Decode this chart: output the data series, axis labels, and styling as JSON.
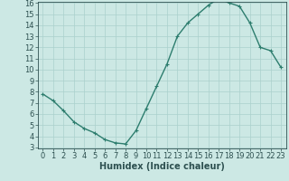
{
  "title": "",
  "xlabel": "Humidex (Indice chaleur)",
  "x": [
    0,
    1,
    2,
    3,
    4,
    5,
    6,
    7,
    8,
    9,
    10,
    11,
    12,
    13,
    14,
    15,
    16,
    17,
    18,
    19,
    20,
    21,
    22,
    23
  ],
  "y": [
    7.8,
    7.2,
    6.3,
    5.3,
    4.7,
    4.3,
    3.7,
    3.4,
    3.3,
    4.5,
    6.5,
    8.5,
    10.5,
    13.0,
    14.2,
    15.0,
    15.8,
    16.4,
    16.0,
    15.7,
    14.2,
    12.0,
    11.7,
    10.2
  ],
  "ylim_min": 3,
  "ylim_max": 16,
  "xlim_min": -0.5,
  "xlim_max": 23.5,
  "yticks": [
    3,
    4,
    5,
    6,
    7,
    8,
    9,
    10,
    11,
    12,
    13,
    14,
    15,
    16
  ],
  "xticks": [
    0,
    1,
    2,
    3,
    4,
    5,
    6,
    7,
    8,
    9,
    10,
    11,
    12,
    13,
    14,
    15,
    16,
    17,
    18,
    19,
    20,
    21,
    22,
    23
  ],
  "line_color": "#2d7d6e",
  "marker": "+",
  "bg_color": "#cce8e4",
  "grid_color": "#aad0cc",
  "text_color": "#2d5050",
  "label_fontsize": 7,
  "tick_fontsize": 6,
  "linewidth": 1.0,
  "markersize": 3.5,
  "markeredgewidth": 0.8
}
